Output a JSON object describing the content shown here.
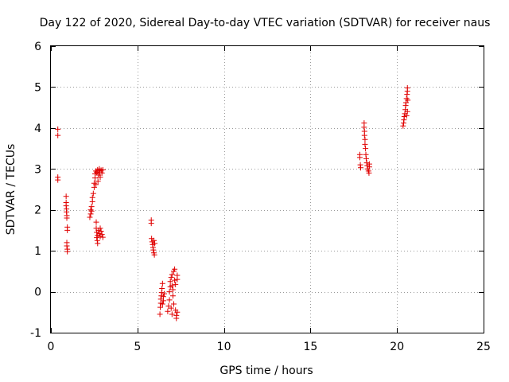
{
  "chart_data": {
    "type": "scatter",
    "title": "Day 122 of 2020, Sidereal Day-to-day VTEC variation (SDTVAR) for receiver naus",
    "xlabel": "GPS time / hours",
    "ylabel": "SDTVAR / TECUs",
    "xlim": [
      0,
      25
    ],
    "ylim": [
      -1,
      6
    ],
    "xticks": [
      0,
      5,
      10,
      15,
      20,
      25
    ],
    "yticks": [
      -1,
      0,
      1,
      2,
      3,
      4,
      5,
      6
    ],
    "grid": true,
    "marker": "plus",
    "color": "#e00000",
    "points": [
      [
        0.4,
        3.97
      ],
      [
        0.4,
        3.82
      ],
      [
        0.4,
        2.8
      ],
      [
        0.4,
        2.73
      ],
      [
        0.88,
        2.33
      ],
      [
        0.88,
        2.18
      ],
      [
        0.88,
        2.1
      ],
      [
        0.9,
        2.02
      ],
      [
        0.9,
        1.95
      ],
      [
        0.92,
        1.86
      ],
      [
        0.92,
        1.8
      ],
      [
        0.95,
        1.58
      ],
      [
        0.95,
        1.5
      ],
      [
        0.92,
        1.2
      ],
      [
        0.92,
        1.12
      ],
      [
        0.95,
        1.04
      ],
      [
        0.95,
        0.98
      ],
      [
        2.25,
        1.82
      ],
      [
        2.3,
        1.9
      ],
      [
        2.3,
        2.0
      ],
      [
        2.35,
        2.08
      ],
      [
        2.35,
        1.97
      ],
      [
        2.4,
        2.2
      ],
      [
        2.4,
        2.3
      ],
      [
        2.45,
        2.4
      ],
      [
        2.5,
        2.55
      ],
      [
        2.5,
        2.65
      ],
      [
        2.55,
        2.78
      ],
      [
        2.55,
        2.88
      ],
      [
        2.6,
        2.95
      ],
      [
        2.6,
        2.62
      ],
      [
        2.62,
        1.7
      ],
      [
        2.62,
        1.55
      ],
      [
        2.65,
        1.45
      ],
      [
        2.65,
        1.32
      ],
      [
        2.68,
        1.25
      ],
      [
        2.7,
        1.18
      ],
      [
        2.7,
        1.38
      ],
      [
        2.72,
        2.7
      ],
      [
        2.75,
        2.85
      ],
      [
        2.78,
        2.95
      ],
      [
        2.8,
        3.0
      ],
      [
        2.82,
        2.9
      ],
      [
        2.85,
        2.8
      ],
      [
        2.75,
        1.5
      ],
      [
        2.8,
        1.42
      ],
      [
        2.85,
        1.35
      ],
      [
        2.9,
        1.48
      ],
      [
        2.95,
        1.4
      ],
      [
        3.0,
        1.33
      ],
      [
        2.9,
        2.97
      ],
      [
        2.95,
        2.9
      ],
      [
        3.0,
        2.98
      ],
      [
        2.65,
        2.92
      ],
      [
        2.7,
        2.98
      ],
      [
        2.85,
        1.55
      ],
      [
        5.8,
        1.75
      ],
      [
        5.8,
        1.67
      ],
      [
        5.82,
        1.3
      ],
      [
        5.85,
        1.22
      ],
      [
        5.88,
        1.15
      ],
      [
        5.9,
        1.08
      ],
      [
        5.92,
        1.02
      ],
      [
        5.95,
        0.95
      ],
      [
        5.98,
        0.9
      ],
      [
        6.0,
        1.18
      ],
      [
        5.95,
        1.25
      ],
      [
        6.3,
        -0.55
      ],
      [
        6.32,
        -0.38
      ],
      [
        6.35,
        -0.28
      ],
      [
        6.35,
        -0.18
      ],
      [
        6.38,
        -0.1
      ],
      [
        6.4,
        -0.02
      ],
      [
        6.42,
        0.08
      ],
      [
        6.45,
        0.2
      ],
      [
        6.45,
        -0.3
      ],
      [
        6.5,
        -0.22
      ],
      [
        6.5,
        -0.12
      ],
      [
        6.55,
        -0.05
      ],
      [
        6.75,
        -0.48
      ],
      [
        6.8,
        -0.35
      ],
      [
        6.85,
        -0.2
      ],
      [
        6.85,
        0.0
      ],
      [
        6.9,
        0.12
      ],
      [
        6.9,
        0.25
      ],
      [
        6.95,
        0.35
      ],
      [
        7.0,
        0.42
      ],
      [
        7.0,
        0.15
      ],
      [
        7.05,
        0.05
      ],
      [
        7.05,
        -0.1
      ],
      [
        7.1,
        -0.3
      ],
      [
        7.1,
        0.5
      ],
      [
        7.15,
        0.55
      ],
      [
        7.15,
        0.28
      ],
      [
        7.2,
        0.18
      ],
      [
        7.2,
        -0.45
      ],
      [
        7.25,
        -0.58
      ],
      [
        7.25,
        -0.65
      ],
      [
        7.3,
        -0.5
      ],
      [
        7.3,
        0.3
      ],
      [
        7.3,
        0.4
      ],
      [
        6.95,
        -0.4
      ],
      [
        7.0,
        -0.55
      ],
      [
        17.85,
        3.35
      ],
      [
        17.85,
        3.28
      ],
      [
        17.88,
        3.1
      ],
      [
        17.9,
        3.03
      ],
      [
        18.1,
        4.12
      ],
      [
        18.1,
        4.02
      ],
      [
        18.12,
        3.92
      ],
      [
        18.12,
        3.82
      ],
      [
        18.15,
        3.72
      ],
      [
        18.15,
        3.6
      ],
      [
        18.18,
        3.5
      ],
      [
        18.2,
        3.35
      ],
      [
        18.22,
        3.25
      ],
      [
        18.25,
        3.15
      ],
      [
        18.28,
        3.08
      ],
      [
        18.3,
        3.0
      ],
      [
        18.35,
        2.95
      ],
      [
        18.38,
        2.9
      ],
      [
        18.4,
        3.05
      ],
      [
        18.4,
        3.12
      ],
      [
        20.35,
        4.05
      ],
      [
        20.38,
        4.12
      ],
      [
        20.4,
        4.2
      ],
      [
        20.42,
        4.28
      ],
      [
        20.45,
        4.35
      ],
      [
        20.48,
        4.45
      ],
      [
        20.5,
        4.55
      ],
      [
        20.52,
        4.62
      ],
      [
        20.55,
        4.72
      ],
      [
        20.58,
        4.82
      ],
      [
        20.6,
        4.9
      ],
      [
        20.6,
        4.98
      ],
      [
        20.55,
        4.3
      ],
      [
        20.6,
        4.4
      ],
      [
        20.62,
        4.68
      ]
    ]
  }
}
